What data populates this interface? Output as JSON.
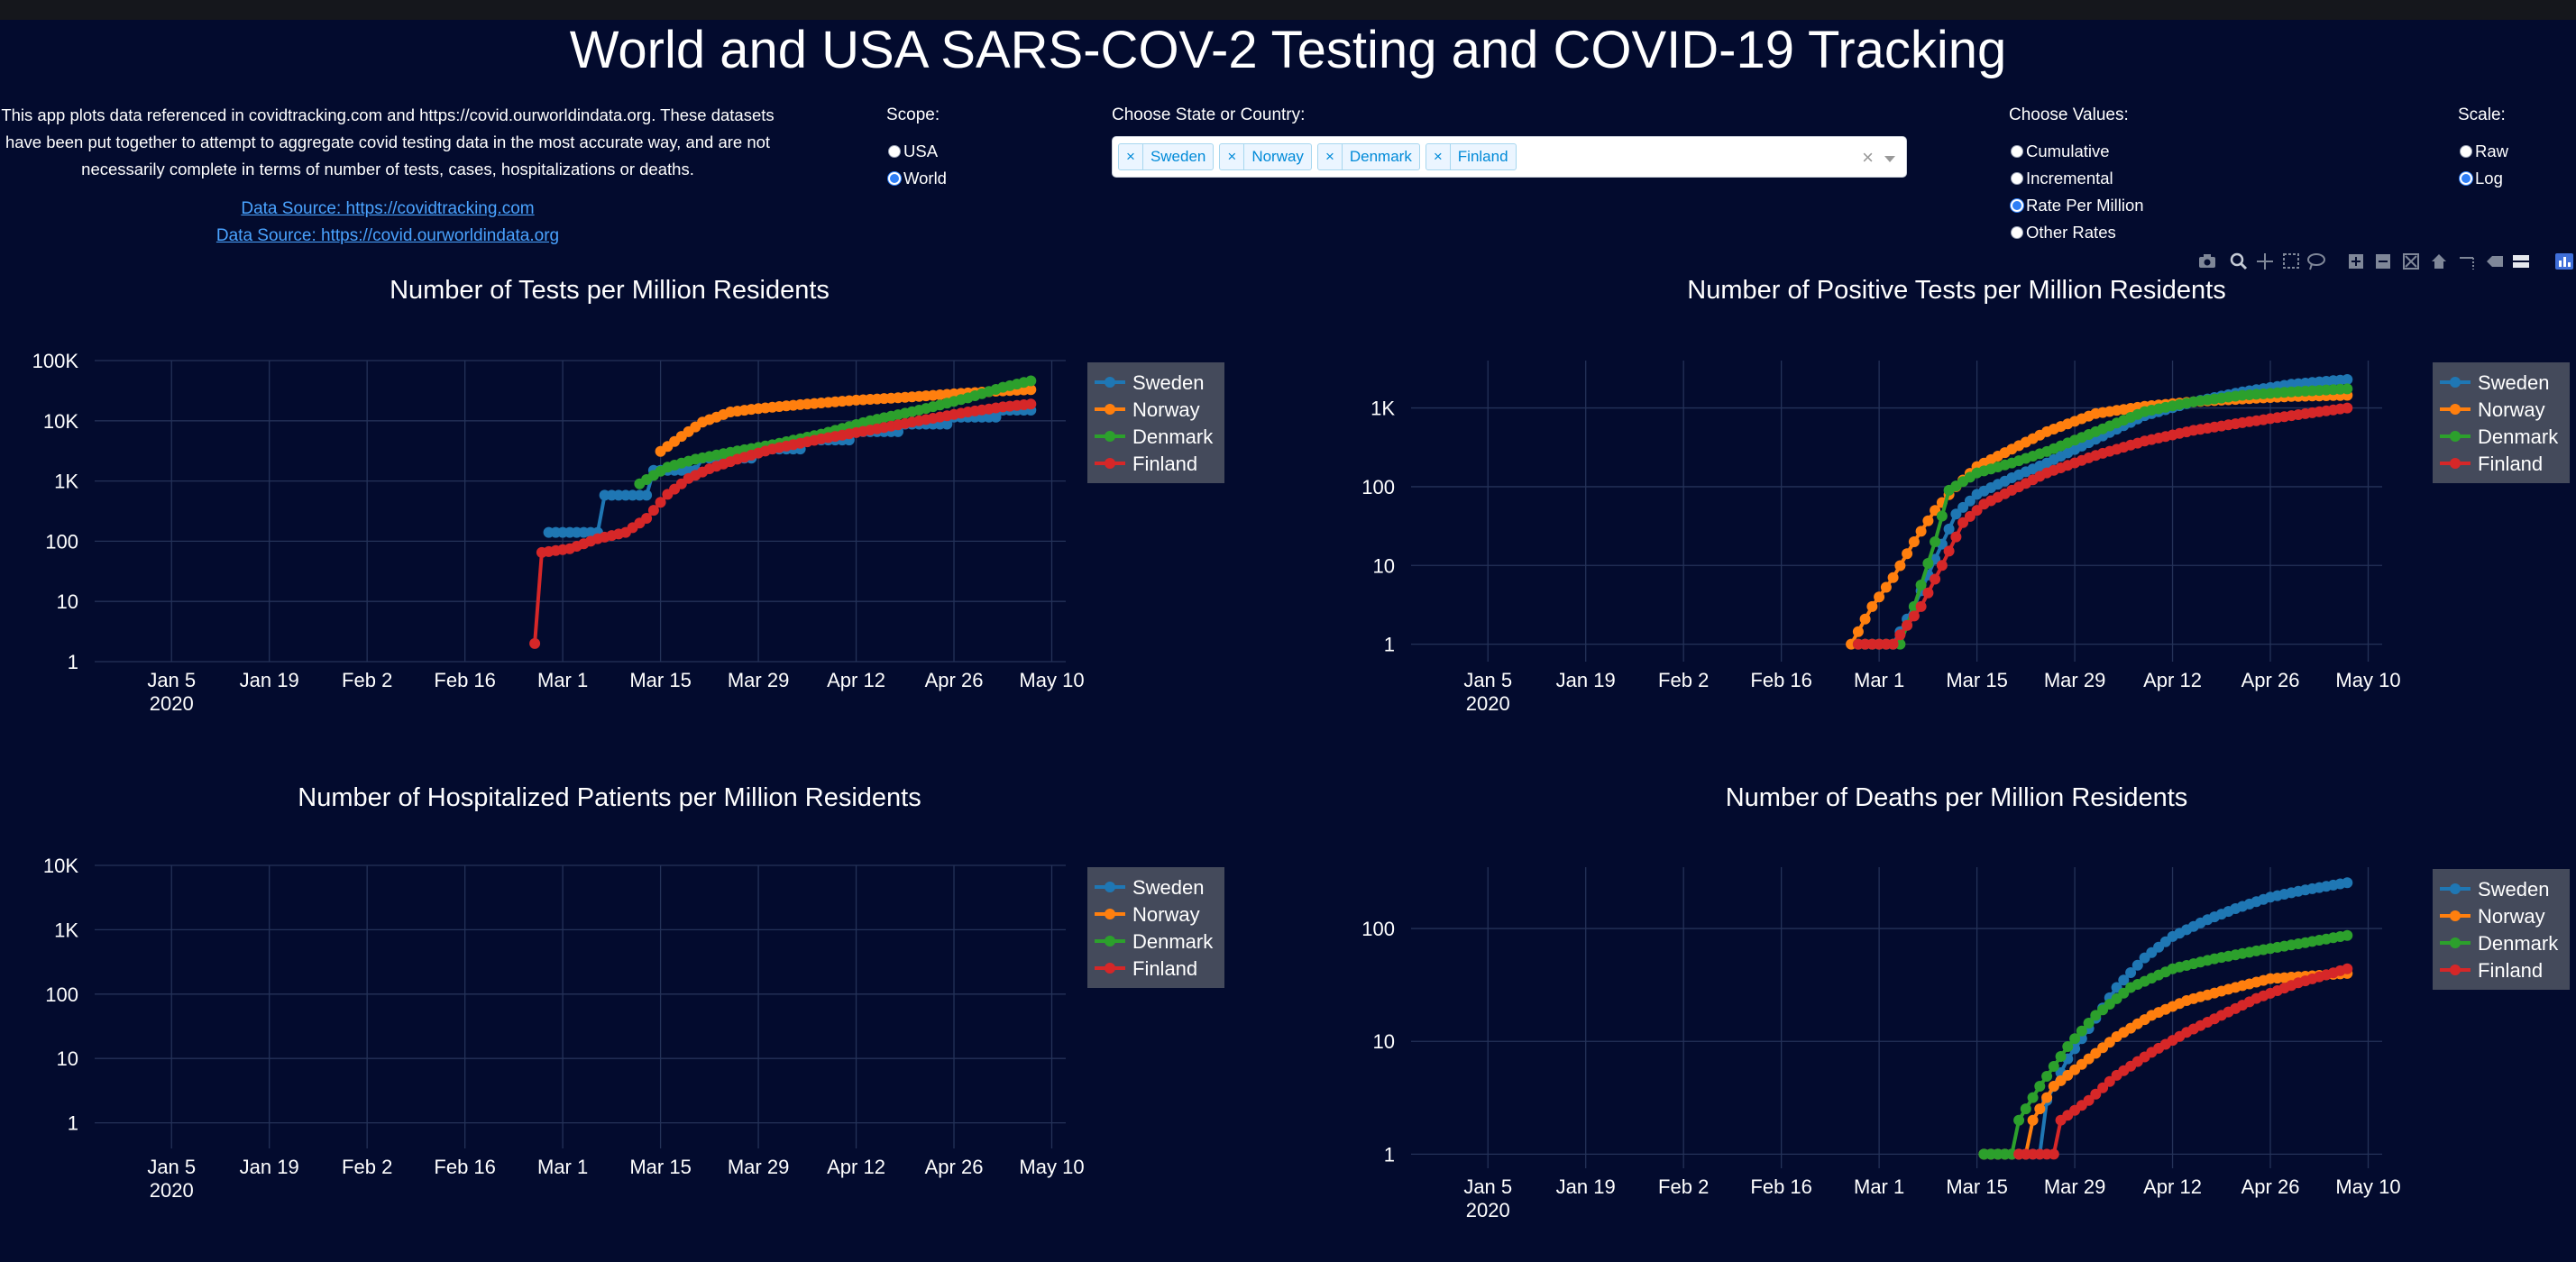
{
  "title": "World and USA SARS-COV-2 Testing and COVID-19 Tracking",
  "intro": {
    "text": "This app plots data referenced in covidtracking.com and https://covid.ourworldindata.org. These datasets have been put together to attempt to aggregate covid testing data in the most accurate way, and are not necessarily complete in terms of number of tests, cases, hospitalizations or deaths.",
    "link1": "Data Source: https://covidtracking.com",
    "link2": "Data Source: https://covid.ourworldindata.org"
  },
  "scope": {
    "label": "Scope:",
    "options": [
      "USA",
      "World"
    ],
    "selected": "World"
  },
  "location": {
    "label": "Choose State or Country:",
    "selected": [
      "Sweden",
      "Norway",
      "Denmark",
      "Finland"
    ],
    "clear_glyph": "×",
    "remove_glyph": "×"
  },
  "values": {
    "label": "Choose Values:",
    "options": [
      "Cumulative",
      "Incremental",
      "Rate Per Million",
      "Other Rates"
    ],
    "selected": "Rate Per Million"
  },
  "scale": {
    "label": "Scale:",
    "options": [
      "Raw",
      "Log"
    ],
    "selected": "Log"
  },
  "modebar_icons": [
    "camera-icon",
    "zoom-icon",
    "pan-icon",
    "box-select-icon",
    "lasso-select-icon",
    "zoom-in-icon",
    "zoom-out-icon",
    "autoscale-icon",
    "reset-axes-icon",
    "spike-lines-icon",
    "hover-closest-icon",
    "hover-compare-icon",
    "plotly-logo-icon"
  ],
  "colors": {
    "Sweden": "#1f77b4",
    "Norway": "#ff7f0e",
    "Denmark": "#2ca02c",
    "Finland": "#d62728",
    "background": "#030b2e",
    "grid": "#243258"
  },
  "chart_data": [
    {
      "type": "line",
      "title": "Number of Tests per Million Residents",
      "yscale": "log",
      "xlim": [
        "2019-12-25",
        "2020-05-12"
      ],
      "ylim": [
        1,
        100000
      ],
      "x_ticks": [
        "Jan 5\n2020",
        "Jan 19",
        "Feb 2",
        "Feb 16",
        "Mar 1",
        "Mar 15",
        "Mar 29",
        "Apr 12",
        "Apr 26",
        "May 10"
      ],
      "y_ticks": [
        "1",
        "10",
        "100",
        "1K",
        "10K",
        "100K"
      ],
      "legend": "right",
      "series": [
        {
          "name": "Sweden",
          "points": [
            [
              "2020-02-28",
              140
            ],
            [
              "2020-03-06",
              140
            ],
            [
              "2020-03-07",
              580
            ],
            [
              "2020-03-13",
              580
            ],
            [
              "2020-03-14",
              1500
            ],
            [
              "2020-03-20",
              1500
            ],
            [
              "2020-03-21",
              2400
            ],
            [
              "2020-03-28",
              2400
            ],
            [
              "2020-03-29",
              3400
            ],
            [
              "2020-04-04",
              3400
            ],
            [
              "2020-04-05",
              4800
            ],
            [
              "2020-04-11",
              4800
            ],
            [
              "2020-04-12",
              6600
            ],
            [
              "2020-04-18",
              6600
            ],
            [
              "2020-04-19",
              8800
            ],
            [
              "2020-04-25",
              8800
            ],
            [
              "2020-04-26",
              11500
            ],
            [
              "2020-05-02",
              11500
            ],
            [
              "2020-05-03",
              15000
            ],
            [
              "2020-05-07",
              15000
            ]
          ]
        },
        {
          "name": "Norway",
          "points": [
            [
              "2020-03-15",
              3100
            ],
            [
              "2020-03-18",
              5500
            ],
            [
              "2020-03-21",
              9500
            ],
            [
              "2020-03-25",
              14000
            ],
            [
              "2020-03-29",
              16000
            ],
            [
              "2020-04-05",
              19000
            ],
            [
              "2020-04-12",
              22000
            ],
            [
              "2020-04-19",
              24500
            ],
            [
              "2020-04-26",
              28000
            ],
            [
              "2020-05-02",
              31000
            ],
            [
              "2020-05-07",
              33000
            ]
          ]
        },
        {
          "name": "Denmark",
          "points": [
            [
              "2020-03-12",
              900
            ],
            [
              "2020-03-16",
              1700
            ],
            [
              "2020-03-20",
              2300
            ],
            [
              "2020-03-25",
              3000
            ],
            [
              "2020-03-31",
              4000
            ],
            [
              "2020-04-07",
              6000
            ],
            [
              "2020-04-14",
              10000
            ],
            [
              "2020-04-21",
              15000
            ],
            [
              "2020-04-28",
              24000
            ],
            [
              "2020-05-03",
              36000
            ],
            [
              "2020-05-07",
              46000
            ]
          ]
        },
        {
          "name": "Finland",
          "points": [
            [
              "2020-02-26",
              2
            ],
            [
              "2020-02-27",
              65
            ],
            [
              "2020-03-02",
              75
            ],
            [
              "2020-03-06",
              110
            ],
            [
              "2020-03-10",
              140
            ],
            [
              "2020-03-13",
              240
            ],
            [
              "2020-03-16",
              600
            ],
            [
              "2020-03-19",
              1100
            ],
            [
              "2020-03-22",
              1600
            ],
            [
              "2020-03-26",
              2300
            ],
            [
              "2020-03-31",
              3400
            ],
            [
              "2020-04-07",
              5000
            ],
            [
              "2020-04-14",
              7000
            ],
            [
              "2020-04-21",
              10000
            ],
            [
              "2020-04-28",
              14000
            ],
            [
              "2020-05-03",
              17000
            ],
            [
              "2020-05-07",
              19000
            ]
          ]
        }
      ]
    },
    {
      "type": "line",
      "title": "Number of Positive Tests per Million Residents",
      "yscale": "log",
      "xlim": [
        "2019-12-25",
        "2020-05-12"
      ],
      "ylim": [
        0.6,
        4000
      ],
      "x_ticks": [
        "Jan 5\n2020",
        "Jan 19",
        "Feb 2",
        "Feb 16",
        "Mar 1",
        "Mar 15",
        "Mar 29",
        "Apr 12",
        "Apr 26",
        "May 10"
      ],
      "y_ticks": [
        "1",
        "10",
        "100",
        "1K"
      ],
      "legend": "right",
      "series": [
        {
          "name": "Sweden",
          "points": [
            [
              "2020-02-28",
              1
            ],
            [
              "2020-03-03",
              1
            ],
            [
              "2020-03-06",
              3
            ],
            [
              "2020-03-09",
              12
            ],
            [
              "2020-03-12",
              45
            ],
            [
              "2020-03-15",
              80
            ],
            [
              "2020-03-20",
              130
            ],
            [
              "2020-03-25",
              200
            ],
            [
              "2020-04-01",
              400
            ],
            [
              "2020-04-08",
              800
            ],
            [
              "2020-04-15",
              1200
            ],
            [
              "2020-04-22",
              1600
            ],
            [
              "2020-04-29",
              2000
            ],
            [
              "2020-05-07",
              2300
            ]
          ]
        },
        {
          "name": "Norway",
          "points": [
            [
              "2020-02-26",
              1
            ],
            [
              "2020-02-29",
              3
            ],
            [
              "2020-03-03",
              7
            ],
            [
              "2020-03-06",
              20
            ],
            [
              "2020-03-09",
              50
            ],
            [
              "2020-03-12",
              100
            ],
            [
              "2020-03-15",
              180
            ],
            [
              "2020-03-20",
              300
            ],
            [
              "2020-03-25",
              500
            ],
            [
              "2020-04-01",
              850
            ],
            [
              "2020-04-08",
              1050
            ],
            [
              "2020-04-15",
              1200
            ],
            [
              "2020-04-22",
              1300
            ],
            [
              "2020-04-29",
              1400
            ],
            [
              "2020-05-07",
              1450
            ]
          ]
        },
        {
          "name": "Denmark",
          "points": [
            [
              "2020-02-27",
              1
            ],
            [
              "2020-03-04",
              1
            ],
            [
              "2020-03-06",
              3
            ],
            [
              "2020-03-09",
              20
            ],
            [
              "2020-03-11",
              90
            ],
            [
              "2020-03-15",
              150
            ],
            [
              "2020-03-20",
              200
            ],
            [
              "2020-03-25",
              280
            ],
            [
              "2020-04-01",
              500
            ],
            [
              "2020-04-08",
              900
            ],
            [
              "2020-04-15",
              1200
            ],
            [
              "2020-04-22",
              1450
            ],
            [
              "2020-04-29",
              1600
            ],
            [
              "2020-05-07",
              1750
            ]
          ]
        },
        {
          "name": "Finland",
          "points": [
            [
              "2020-02-27",
              1
            ],
            [
              "2020-03-03",
              1
            ],
            [
              "2020-03-07",
              3
            ],
            [
              "2020-03-10",
              10
            ],
            [
              "2020-03-13",
              35
            ],
            [
              "2020-03-16",
              60
            ],
            [
              "2020-03-20",
              90
            ],
            [
              "2020-03-25",
              150
            ],
            [
              "2020-04-01",
              250
            ],
            [
              "2020-04-08",
              380
            ],
            [
              "2020-04-15",
              520
            ],
            [
              "2020-04-22",
              650
            ],
            [
              "2020-04-29",
              800
            ],
            [
              "2020-05-07",
              1000
            ]
          ]
        }
      ]
    },
    {
      "type": "line",
      "title": "Number of Hospitalized Patients per Million Residents",
      "yscale": "log",
      "xlim": [
        "2019-12-25",
        "2020-05-12"
      ],
      "ylim": [
        0.4,
        10000
      ],
      "x_ticks": [
        "Jan 5\n2020",
        "Jan 19",
        "Feb 2",
        "Feb 16",
        "Mar 1",
        "Mar 15",
        "Mar 29",
        "Apr 12",
        "Apr 26",
        "May 10"
      ],
      "y_ticks": [
        "1",
        "10",
        "100",
        "1K",
        "10K"
      ],
      "legend": "right",
      "series": [
        {
          "name": "Sweden",
          "points": []
        },
        {
          "name": "Norway",
          "points": []
        },
        {
          "name": "Denmark",
          "points": []
        },
        {
          "name": "Finland",
          "points": []
        }
      ]
    },
    {
      "type": "line",
      "title": "Number of Deaths per Million Residents",
      "yscale": "log",
      "xlim": [
        "2019-12-25",
        "2020-05-12"
      ],
      "ylim": [
        0.75,
        350
      ],
      "x_ticks": [
        "Jan 5\n2020",
        "Jan 19",
        "Feb 2",
        "Feb 16",
        "Mar 1",
        "Mar 15",
        "Mar 29",
        "Apr 12",
        "Apr 26",
        "May 10"
      ],
      "y_ticks": [
        "1",
        "10",
        "100"
      ],
      "legend": "right",
      "series": [
        {
          "name": "Sweden",
          "points": [
            [
              "2020-03-16",
              1
            ],
            [
              "2020-03-24",
              1
            ],
            [
              "2020-03-25",
              3
            ],
            [
              "2020-03-28",
              7
            ],
            [
              "2020-03-31",
              13
            ],
            [
              "2020-04-04",
              30
            ],
            [
              "2020-04-08",
              55
            ],
            [
              "2020-04-12",
              85
            ],
            [
              "2020-04-17",
              120
            ],
            [
              "2020-04-21",
              150
            ],
            [
              "2020-04-26",
              190
            ],
            [
              "2020-05-01",
              220
            ],
            [
              "2020-05-07",
              255
            ]
          ]
        },
        {
          "name": "Norway",
          "points": [
            [
              "2020-03-16",
              1
            ],
            [
              "2020-03-22",
              1
            ],
            [
              "2020-03-23",
              2
            ],
            [
              "2020-03-26",
              4
            ],
            [
              "2020-03-31",
              7
            ],
            [
              "2020-04-04",
              11
            ],
            [
              "2020-04-09",
              17
            ],
            [
              "2020-04-14",
              23
            ],
            [
              "2020-04-20",
              29
            ],
            [
              "2020-04-26",
              36
            ],
            [
              "2020-05-07",
              40
            ]
          ]
        },
        {
          "name": "Denmark",
          "points": [
            [
              "2020-03-16",
              1
            ],
            [
              "2020-03-20",
              1
            ],
            [
              "2020-03-21",
              2
            ],
            [
              "2020-03-24",
              4
            ],
            [
              "2020-03-28",
              9
            ],
            [
              "2020-04-01",
              17
            ],
            [
              "2020-04-06",
              30
            ],
            [
              "2020-04-12",
              44
            ],
            [
              "2020-04-18",
              54
            ],
            [
              "2020-04-25",
              65
            ],
            [
              "2020-05-01",
              75
            ],
            [
              "2020-05-07",
              87
            ]
          ]
        },
        {
          "name": "Finland",
          "points": [
            [
              "2020-03-21",
              1
            ],
            [
              "2020-03-26",
              1
            ],
            [
              "2020-03-27",
              2
            ],
            [
              "2020-03-31",
              3
            ],
            [
              "2020-04-04",
              5
            ],
            [
              "2020-04-09",
              8
            ],
            [
              "2020-04-14",
              12
            ],
            [
              "2020-04-19",
              17
            ],
            [
              "2020-04-24",
              24
            ],
            [
              "2020-04-30",
              33
            ],
            [
              "2020-05-07",
              44
            ]
          ]
        }
      ]
    }
  ]
}
